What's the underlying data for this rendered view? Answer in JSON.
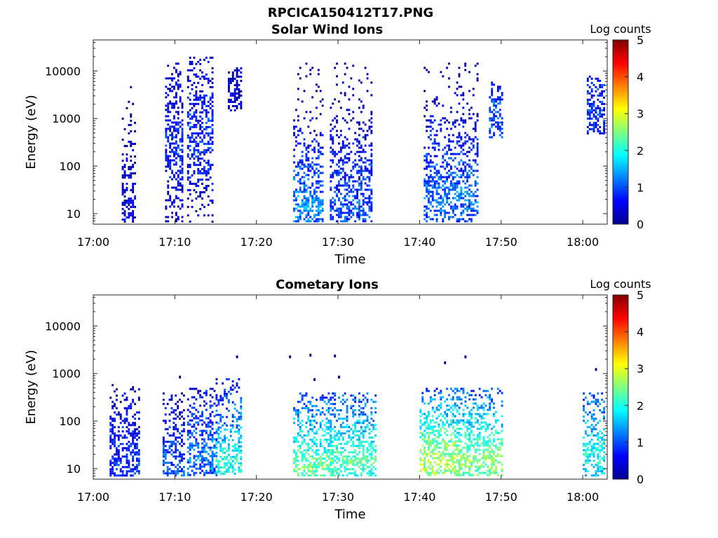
{
  "figure": {
    "title": "RPCICA150412T17.PNG"
  },
  "colormap": [
    "#00008f",
    "#0000ff",
    "#0080ff",
    "#00ffff",
    "#80ff80",
    "#ffff00",
    "#ff8000",
    "#ff0000",
    "#800000"
  ],
  "chart_data": [
    {
      "type": "heatmap",
      "title": "Solar Wind Ions",
      "xlabel": "Time",
      "ylabel": "Energy (eV)",
      "yscale": "log",
      "xlim": [
        "17:00",
        "18:03"
      ],
      "ylim": [
        6,
        45000
      ],
      "x_tick_labels": [
        "17:00",
        "17:10",
        "17:20",
        "17:30",
        "17:40",
        "17:50",
        "18:00"
      ],
      "y_ticks": [
        10,
        100,
        1000,
        10000
      ],
      "y_tick_labels": [
        "10",
        "100",
        "1000",
        "10000"
      ],
      "colorbar": {
        "label": "Log counts",
        "range": [
          0,
          5
        ],
        "ticks": [
          "0",
          "1",
          "2",
          "3",
          "4",
          "5"
        ]
      },
      "bursts": [
        {
          "start": "17:03.5",
          "end": "17:05.0",
          "emin": 7,
          "emax": 8000,
          "level": 0.4,
          "peak_energy": 15
        },
        {
          "start": "17:08.8",
          "end": "17:11.0",
          "emin": 7,
          "emax": 15000,
          "level": 0.7,
          "peak_energy": 300
        },
        {
          "start": "17:11.5",
          "end": "17:14.5",
          "emin": 7,
          "emax": 20000,
          "level": 0.8,
          "peak_energy": 500
        },
        {
          "start": "17:16.5",
          "end": "17:18.0",
          "emin": 1500,
          "emax": 12000,
          "level": 0.3,
          "peak_energy": 5000
        },
        {
          "start": "17:24.5",
          "end": "17:28.0",
          "emin": 7,
          "emax": 15000,
          "level": 1.3,
          "peak_energy": 15
        },
        {
          "start": "17:29.0",
          "end": "17:34.0",
          "emin": 7,
          "emax": 15000,
          "level": 1.0,
          "peak_energy": 15
        },
        {
          "start": "17:40.5",
          "end": "17:47.0",
          "emin": 7,
          "emax": 15000,
          "level": 1.2,
          "peak_energy": 25
        },
        {
          "start": "17:48.5",
          "end": "17:50.0",
          "emin": 400,
          "emax": 6000,
          "level": 1.0,
          "peak_energy": 1200
        },
        {
          "start": "18:00.5",
          "end": "18:02.5",
          "emin": 500,
          "emax": 8000,
          "level": 0.8,
          "peak_energy": 2000
        }
      ]
    },
    {
      "type": "heatmap",
      "title": "Cometary Ions",
      "xlabel": "Time",
      "ylabel": "Energy (eV)",
      "yscale": "log",
      "xlim": [
        "17:00",
        "18:03"
      ],
      "ylim": [
        6,
        45000
      ],
      "x_tick_labels": [
        "17:00",
        "17:10",
        "17:20",
        "17:30",
        "17:40",
        "17:50",
        "18:00"
      ],
      "y_ticks": [
        10,
        100,
        1000,
        10000
      ],
      "y_tick_labels": [
        "10",
        "100",
        "1000",
        "10000"
      ],
      "colorbar": {
        "label": "Log counts",
        "range": [
          0,
          5
        ],
        "ticks": [
          "0",
          "1",
          "2",
          "3",
          "4",
          "5"
        ]
      },
      "bursts": [
        {
          "start": "17:02.0",
          "end": "17:05.5",
          "emin": 7,
          "emax": 600,
          "level": 0.8,
          "peak_energy": 12
        },
        {
          "start": "17:08.5",
          "end": "17:11.0",
          "emin": 7,
          "emax": 400,
          "level": 1.0,
          "peak_energy": 10
        },
        {
          "start": "17:11.5",
          "end": "17:15.0",
          "emin": 7,
          "emax": 500,
          "level": 1.2,
          "peak_energy": 20
        },
        {
          "start": "17:15.0",
          "end": "17:18.0",
          "emin": 8,
          "emax": 800,
          "level": 2.0,
          "peak_energy": 15
        },
        {
          "start": "17:24.5",
          "end": "17:29.0",
          "emin": 7,
          "emax": 400,
          "level": 2.4,
          "peak_energy": 12
        },
        {
          "start": "17:29.0",
          "end": "17:34.5",
          "emin": 7,
          "emax": 400,
          "level": 2.3,
          "peak_energy": 15
        },
        {
          "start": "17:40.0",
          "end": "17:44.5",
          "emin": 7,
          "emax": 500,
          "level": 2.8,
          "peak_energy": 15
        },
        {
          "start": "17:44.5",
          "end": "17:50.0",
          "emin": 7,
          "emax": 500,
          "level": 2.6,
          "peak_energy": 15
        },
        {
          "start": "18:00.0",
          "end": "18:02.5",
          "emin": 7,
          "emax": 400,
          "level": 2.0,
          "peak_energy": 20
        }
      ],
      "sparse_points": [
        {
          "time": "17:10.5",
          "energy": 900
        },
        {
          "time": "17:17.5",
          "energy": 2400
        },
        {
          "time": "17:24.0",
          "energy": 2400
        },
        {
          "time": "17:26.5",
          "energy": 2600
        },
        {
          "time": "17:27.0",
          "energy": 800
        },
        {
          "time": "17:29.5",
          "energy": 2500
        },
        {
          "time": "17:30.0",
          "energy": 900
        },
        {
          "time": "17:43.0",
          "energy": 1800
        },
        {
          "time": "17:45.5",
          "energy": 2400
        },
        {
          "time": "18:01.5",
          "energy": 1300
        }
      ]
    }
  ]
}
